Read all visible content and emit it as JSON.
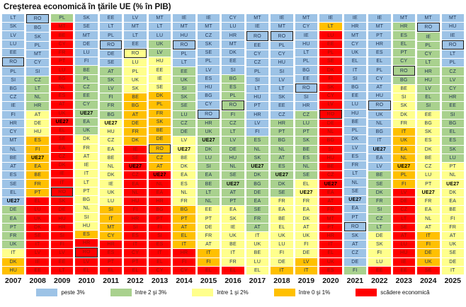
{
  "chart_data": {
    "type": "heatmap",
    "title": "Creşterea economică în ţările UE (% în PIB)",
    "highlight_code": "RO",
    "bold_code": "UE27",
    "band_order": [
      "b",
      "g",
      "y",
      "o",
      "r"
    ],
    "bands": {
      "b": {
        "label": "peste 3%",
        "color": "#9DC3E6",
        "text": "#1F3352"
      },
      "g": {
        "label": "între 2 şi 3%",
        "color": "#A9D18E",
        "text": "#1F3352"
      },
      "y": {
        "label": "între 1 şi 2%",
        "color": "#FFFF8C",
        "text": "#1F3352"
      },
      "o": {
        "label": "între 0 şi 1%",
        "color": "#FFC000",
        "text": "#1F3352"
      },
      "r": {
        "label": "scădere economică",
        "color": "#FF0000",
        "text": "#8F1408"
      }
    },
    "columns": [
      {
        "year": "2007",
        "cells": [
          "LT:b",
          "SK:b",
          "LV:b",
          "LU:b",
          "EE:b",
          "RO:b",
          "PL:b",
          "SI:b",
          "BG:b",
          "CZ:b",
          "IE:b",
          "FI:b",
          "HR:b",
          "CY:b",
          "MT:b",
          "NL:b",
          "BE:b",
          "AT:b",
          "ES:b",
          "SE:b",
          "EL:b",
          "UE27:b",
          "DE:g",
          "EA:g",
          "PT:g",
          "FR:g",
          "UK:g",
          "IT:y",
          "DK:o",
          "HU:o"
        ]
      },
      {
        "year": "2008",
        "cells": [
          "RO:b",
          "BG:b",
          "SK:b",
          "PL:b",
          "MT:b",
          "CY:b",
          "SI:b",
          "CZ:g",
          "LT:g",
          "NL:g",
          "HR:g",
          "AT:y",
          "DE:y",
          "HU:y",
          "ES:o",
          "FI:o",
          "UE27:o",
          "EA:o",
          "BE:o",
          "FR:o",
          "PT:o",
          "EL:r",
          "LU:r",
          "UK:r",
          "DK:r",
          "SE:r",
          "IT:r",
          "LV:r",
          "IE:r",
          "EE:r"
        ]
      },
      {
        "year": "2009",
        "cells": [
          "PL:g",
          "MT:r",
          "BE:r",
          "CY:r",
          "FR:r",
          "PT:r",
          "LU:r",
          "BG:r",
          "NL:r",
          "ES:r",
          "AT:r",
          "UK:r",
          "UE27:r",
          "EL:r",
          "SE:r",
          "EA:r",
          "CZ:r",
          "DK:r",
          "IE:r",
          "IT:r",
          "RO:r",
          "SK:r",
          "DE:r",
          "HU:r",
          "HR:r",
          "SI:r",
          "FI:r",
          "LV:r",
          "EE:r",
          "LT:r"
        ]
      },
      {
        "year": "2010",
        "cells": [
          "SK:b",
          "SE:b",
          "MT:b",
          "DE:b",
          "LU:b",
          "FI:b",
          "BE:g",
          "PL:g",
          "CZ:g",
          "EE:g",
          "CY:g",
          "UE27:g",
          "EA:g",
          "UK:g",
          "DK:y",
          "FR:y",
          "AT:y",
          "IE:y",
          "IT:y",
          "LT:y",
          "PT:y",
          "BG:y",
          "NL:y",
          "SI:y",
          "HU:y",
          "ES:o",
          "HR:r",
          "RO:r",
          "LV:r",
          "EL:r"
        ]
      },
      {
        "year": "2011",
        "cells": [
          "EE:b",
          "LT:b",
          "PL:b",
          "RO:b",
          "DE:b",
          "SE:b",
          "AT:g",
          "SK:g",
          "LV:g",
          "FI:g",
          "FR:g",
          "BG:g",
          "UE27:y",
          "HU:y",
          "CZ:y",
          "EA:y",
          "BE:y",
          "NL:y",
          "DK:y",
          "IE:y",
          "UK:y",
          "LU:y",
          "SI:o",
          "IT:o",
          "MT:o",
          "CY:o",
          "HR:r",
          "ES:r",
          "PT:r",
          "EL:r"
        ]
      },
      {
        "year": "2012",
        "cells": [
          "LV:b",
          "MT:b",
          "LT:b",
          "EE:b",
          "RO:y",
          "LU:y",
          "PL:y",
          "UK:y",
          "SK:y",
          "BE:o",
          "BG:o",
          "AT:o",
          "DE:o",
          "FR:o",
          "DK:o",
          "IE:r",
          "SE:r",
          "UE27:r",
          "CZ:r",
          "EA:r",
          "NL:r",
          "HU:r",
          "FI:r",
          "HR:r",
          "SI:r",
          "ES:r",
          "IT:r",
          "CY:r",
          "PT:r",
          "EL:r"
        ]
      },
      {
        "year": "2013",
        "cells": [
          "MT:b",
          "LT:b",
          "LU:b",
          "UK:g",
          "LV:g",
          "HU:y",
          "EE:y",
          "IE:y",
          "SE:y",
          "DK:o",
          "PL:o",
          "FR:o",
          "SK:o",
          "BE:o",
          "DE:o",
          "RO:o",
          "CZ:o",
          "AT:o",
          "UE27:r",
          "NL:r",
          "EA:r",
          "HR:r",
          "BG:r",
          "PT:r",
          "FI:r",
          "SI:r",
          "ES:r",
          "IT:r",
          "EL:r",
          "CY:r"
        ]
      },
      {
        "year": "2014",
        "cells": [
          "IE:b",
          "MT:b",
          "HU:b",
          "RO:b",
          "PL:b",
          "LT:b",
          "EE:g",
          "UK:g",
          "SI:g",
          "SK:g",
          "SE:g",
          "LU:g",
          "CZ:g",
          "DE:g",
          "LV:y",
          "UE27:y",
          "BE:y",
          "DK:y",
          "EA:y",
          "ES:y",
          "NL:y",
          "FR:y",
          "BG:o",
          "PT:o",
          "AT:o",
          "EL:o",
          "IT:o",
          "HR:r",
          "FI:r",
          "CY:r"
        ]
      },
      {
        "year": "2015",
        "cells": [
          "IE:b",
          "MT:b",
          "CZ:b",
          "SK:b",
          "SE:b",
          "PL:b",
          "LV:b",
          "ES:b",
          "HU:b",
          "BG:b",
          "CY:b",
          "RO:b",
          "HR:g",
          "UK:g",
          "UE27:g",
          "DK:g",
          "LU:g",
          "SI:g",
          "EA:g",
          "BE:g",
          "LT:g",
          "NL:g",
          "EE:y",
          "PT:y",
          "DE:y",
          "FR:y",
          "AT:y",
          "IT:o",
          "FI:o",
          "EL:r"
        ]
      },
      {
        "year": "2016",
        "cells": [
          "CY:b",
          "LU:b",
          "HR:b",
          "MT:b",
          "DK:b",
          "EE:b",
          "SI:b",
          "BG:g",
          "ES:g",
          "PL:g",
          "RO:g",
          "FI:g",
          "CZ:g",
          "LT:g",
          "LV:g",
          "DE:g",
          "HU:g",
          "NL:g",
          "SE:g",
          "UE27:g",
          "AT:g",
          "PT:g",
          "EA:y",
          "SK:y",
          "IE:y",
          "UK:y",
          "BE:y",
          "IT:y",
          "FR:y",
          "EL:r"
        ]
      },
      {
        "year": "2017",
        "cells": [
          "MT:b",
          "IE:b",
          "RO:b",
          "EE:b",
          "CY:b",
          "CZ:b",
          "PL:b",
          "SI:b",
          "LT:b",
          "HU:b",
          "PT:b",
          "HR:b",
          "LV:b",
          "FI:b",
          "ES:g",
          "NL:g",
          "SK:g",
          "UE27:g",
          "DK:g",
          "BG:g",
          "DE:g",
          "EA:g",
          "SE:g",
          "FR:g",
          "AT:g",
          "IT:y",
          "UK:y",
          "BE:y",
          "LU:y",
          "EL:y"
        ]
      },
      {
        "year": "2018",
        "cells": [
          "IE:b",
          "MT:b",
          "RO:b",
          "PL:b",
          "CY:b",
          "HU:b",
          "SI:b",
          "LV:b",
          "LT:b",
          "SK:b",
          "EE:b",
          "CZ:b",
          "HR:g",
          "PT:g",
          "BG:g",
          "NL:g",
          "AT:g",
          "ES:g",
          "UE27:g",
          "DK:g",
          "SE:g",
          "FR:y",
          "EA:y",
          "BE:y",
          "EL:y",
          "UK:y",
          "LU:y",
          "FI:y",
          "DE:y",
          "IT:o"
        ]
      },
      {
        "year": "2019",
        "cells": [
          "MT:b",
          "CY:b",
          "IE:b",
          "HU:b",
          "LT:b",
          "PL:b",
          "BG:b",
          "EE:b",
          "RO:b",
          "SI:b",
          "HR:b",
          "CZ:g",
          "LU:g",
          "PT:g",
          "SK:g",
          "BE:g",
          "ES:g",
          "NL:g",
          "SE:g",
          "EL:y",
          "UE27:y",
          "FR:y",
          "EA:y",
          "DK:y",
          "AT:y",
          "UK:y",
          "FI:y",
          "DE:y",
          "LV:o",
          "IT:o"
        ]
      },
      {
        "year": "2020",
        "cells": [
          "IE:b",
          "LT:o",
          "LU:r",
          "EE:r",
          "PL:r",
          "SE:r",
          "DK:r",
          "FI:r",
          "SK:r",
          "CY:r",
          "LV:r",
          "RO:r",
          "DE:r",
          "NL:r",
          "BG:r",
          "SI:r",
          "HU:r",
          "BE:r",
          "CZ:r",
          "UE27:r",
          "EA:r",
          "AT:r",
          "FR:r",
          "MT:r",
          "PT:r",
          "HR:r",
          "IT:r",
          "EL:r",
          "UK:r",
          "ES:r"
        ]
      },
      {
        "year": "2021",
        "cells": [
          "IE:b",
          "HR:b",
          "MT:b",
          "CY:b",
          "UK:b",
          "EL:b",
          "IT:b",
          "SI:b",
          "BG:b",
          "EE:b",
          "LU:b",
          "HU:b",
          "BE:b",
          "PL:b",
          "DK:b",
          "LV:b",
          "ES:b",
          "FR:b",
          "LT:b",
          "NL:b",
          "SE:b",
          "UE27:b",
          "EA:b",
          "PT:b",
          "RO:b",
          "SK:b",
          "AT:b",
          "CZ:b",
          "DE:b",
          "FI:g"
        ]
      },
      {
        "year": "2022",
        "cells": [
          "IE:b",
          "MT:b",
          "PT:b",
          "HR:b",
          "ES:b",
          "EL:b",
          "PL:b",
          "CY:b",
          "AT:b",
          "HU:b",
          "RO:b",
          "UK:b",
          "NL:b",
          "BG:b",
          "IT:b",
          "UE27:b",
          "EA:b",
          "LV:b",
          "BE:g",
          "SE:g",
          "DK:g",
          "FR:g",
          "SI:g",
          "CZ:g",
          "LT:g",
          "DE:y",
          "SK:y",
          "FI:y",
          "LU:y",
          "EE:r"
        ]
      },
      {
        "year": "2023",
        "cells": [
          "MT:b",
          "HR:g",
          "ES:g",
          "EL:g",
          "PT:g",
          "CY:g",
          "RO:g",
          "BG:g",
          "BE:y",
          "SI:y",
          "SK:y",
          "DK:y",
          "FR:y",
          "IT:o",
          "UK:o",
          "EA:o",
          "NL:o",
          "UE27:o",
          "PL:o",
          "FI:o",
          "LV:r",
          "DE:r",
          "CZ:r",
          "LT:r",
          "SE:r",
          "AT:r",
          "LU:r",
          "HU:r",
          "IE:r",
          "EE:r"
        ]
      },
      {
        "year": "2024",
        "cells": [
          "MT:b",
          "RO:b",
          "IE:g",
          "PL:g",
          "CY:g",
          "LT:g",
          "HR:g",
          "HU:g",
          "LV:g",
          "EL:g",
          "SI:g",
          "EE:y",
          "BG:y",
          "SK:y",
          "ES:y",
          "DK:y",
          "BE:y",
          "CZ:y",
          "LU:y",
          "PT:y",
          "UE27:y",
          "FR:y",
          "EA:y",
          "NL:y",
          "AT:y",
          "IT:o",
          "FI:o",
          "DE:o",
          "UK:o",
          "SE:r"
        ]
      },
      {
        "year": "2025",
        "cells": [
          "MT:b",
          "HU:b",
          "IE:b",
          "RO:b",
          "LT:b",
          "PL:b",
          "CZ:g",
          "LV:g",
          "CY:g",
          "HR:g",
          "EE:g",
          "SI:g",
          "BG:g",
          "EL:g",
          "ES:g",
          "SK:g",
          "LU:g",
          "PT:y",
          "NL:y",
          "UE27:y",
          "DK:y",
          "EA:y",
          "BE:y",
          "FI:y",
          "FR:y",
          "AT:y",
          "UK:y",
          "SE:y",
          "DE:y",
          "IT:y"
        ]
      }
    ]
  },
  "legend": {
    "items": [
      {
        "band": "b",
        "label": "peste 3%"
      },
      {
        "band": "g",
        "label": "între 2 şi 3%"
      },
      {
        "band": "y",
        "label": "între 1 şi 2%"
      },
      {
        "band": "o",
        "label": "între 0 şi 1%"
      },
      {
        "band": "r",
        "label": "scădere economică"
      }
    ]
  }
}
